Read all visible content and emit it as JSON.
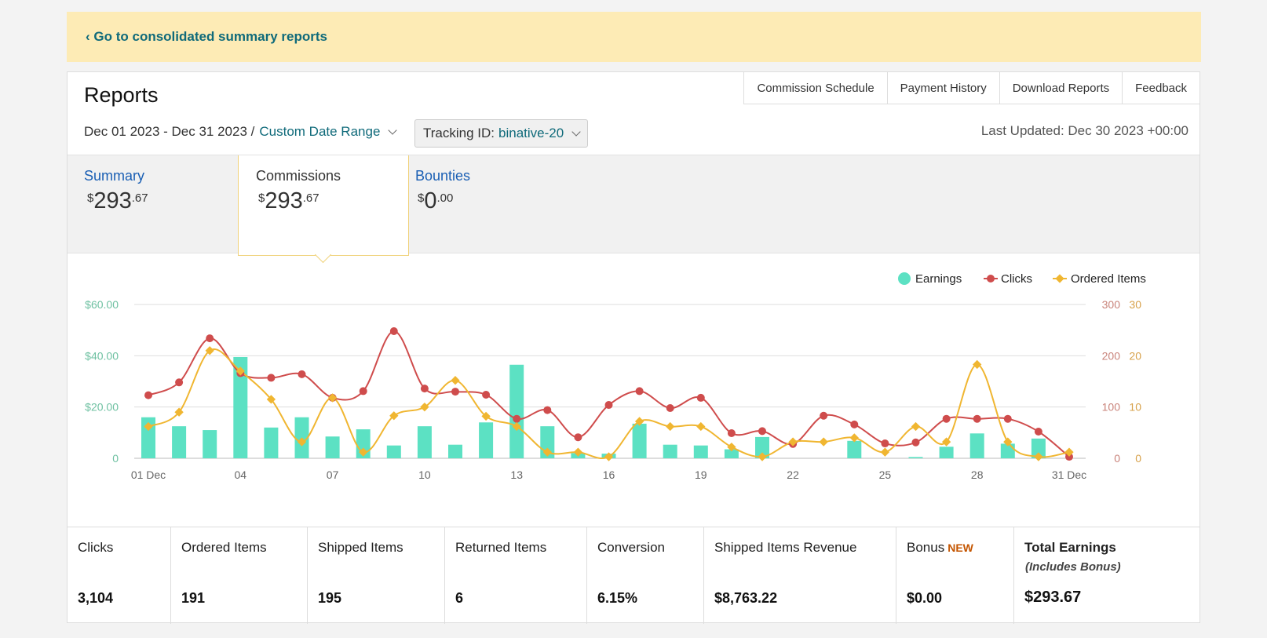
{
  "banner": {
    "link": "‹ Go to consolidated summary reports"
  },
  "header": {
    "title": "Reports",
    "links": [
      "Commission Schedule",
      "Payment History",
      "Download Reports",
      "Feedback"
    ],
    "date_range": "Dec 01 2023 - Dec 31 2023 /",
    "date_link": "Custom Date Range",
    "tracking_label": "Tracking ID:",
    "tracking_value": "binative-20",
    "last_updated": "Last Updated: Dec 30 2023 +00:00"
  },
  "tabs": {
    "summary": {
      "label": "Summary",
      "currency": "$",
      "dollars": "293",
      "cents": ".67"
    },
    "commissions": {
      "label": "Commissions",
      "currency": "$",
      "dollars": "293",
      "cents": ".67"
    },
    "bounties": {
      "label": "Bounties",
      "currency": "$",
      "dollars": "0",
      "cents": ".00"
    }
  },
  "colors": {
    "earnings": "#5ce1c3",
    "clicks": "#cf4c4c",
    "ordered": "#f0b631"
  },
  "chart_data": {
    "type": "bar+line",
    "legend_position": "top-right",
    "legend": [
      "Earnings",
      "Clicks",
      "Ordered Items"
    ],
    "x_tick_labels": [
      "01 Dec",
      "04",
      "07",
      "10",
      "13",
      "16",
      "19",
      "22",
      "25",
      "28",
      "31 Dec"
    ],
    "y_left_ticks": [
      "$60.00",
      "$40.00",
      "$20.00",
      "0"
    ],
    "y_right_clicks_ticks": [
      "300",
      "200",
      "100",
      "0"
    ],
    "y_right_items_ticks": [
      "30",
      "20",
      "10",
      "0"
    ],
    "y_left_range": [
      0,
      60
    ],
    "y_clicks_range": [
      0,
      300
    ],
    "y_items_range": [
      0,
      30
    ],
    "grid": true,
    "x": [
      1,
      2,
      3,
      4,
      5,
      6,
      7,
      8,
      9,
      10,
      11,
      12,
      13,
      14,
      15,
      16,
      17,
      18,
      19,
      20,
      21,
      22,
      23,
      24,
      25,
      26,
      27,
      28,
      29,
      30,
      31
    ],
    "series": [
      {
        "name": "Earnings",
        "axis": "left",
        "values": [
          16,
          12.5,
          11,
          39.5,
          12,
          16,
          8.5,
          11.3,
          5,
          12.5,
          5.3,
          14,
          36.5,
          12.5,
          2,
          1.8,
          13.5,
          5.3,
          5,
          3.5,
          8.3,
          0,
          0,
          6.8,
          0,
          0.5,
          4.5,
          9.7,
          5.7,
          7.7,
          0
        ]
      },
      {
        "name": "Clicks",
        "axis": "right",
        "values": [
          123,
          148,
          234,
          166,
          157,
          164,
          118,
          131,
          248,
          136,
          130,
          124,
          77,
          94,
          41,
          104,
          131,
          98,
          118,
          49,
          53,
          28,
          83,
          66,
          29,
          31,
          77,
          77,
          77,
          52,
          3
        ]
      },
      {
        "name": "Ordered Items",
        "axis": "right",
        "values": [
          6.2,
          9,
          21,
          17,
          11.5,
          3.2,
          11.8,
          1.2,
          8.3,
          10,
          15.2,
          8.2,
          6.2,
          1.2,
          1.2,
          0.3,
          7.2,
          6.2,
          6.2,
          2.2,
          0.3,
          3.2,
          3.2,
          4,
          1.2,
          6.2,
          3.2,
          18.3,
          3.2,
          0.3,
          1.2
        ]
      }
    ]
  },
  "stats": [
    {
      "label": "Clicks",
      "value": "3,104"
    },
    {
      "label": "Ordered Items",
      "value": "191"
    },
    {
      "label": "Shipped Items",
      "value": "195"
    },
    {
      "label": "Returned Items",
      "value": "6"
    },
    {
      "label": "Conversion",
      "value": "6.15%"
    },
    {
      "label": "Shipped Items Revenue",
      "value": "$8,763.22"
    },
    {
      "label": "Bonus",
      "badge": "NEW",
      "value": "$0.00"
    },
    {
      "label": "Total Earnings",
      "sub": "(Includes Bonus)",
      "value": "$293.67"
    }
  ]
}
